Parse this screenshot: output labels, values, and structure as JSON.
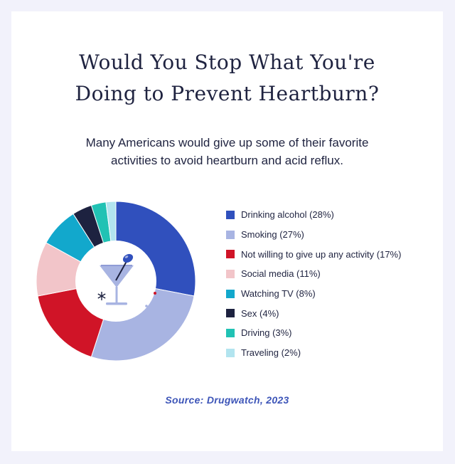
{
  "title": "Would You Stop What You're\nDoing to Prevent Heartburn?",
  "subtitle": "Many Americans would give up some of their favorite\nactivities to avoid heartburn and acid reflux.",
  "source": "Source: Drugwatch, 2023",
  "chart_data": {
    "type": "pie",
    "donut": true,
    "legend_position": "right",
    "center_icon": "martini-glass-icon",
    "series": [
      {
        "label": "Drinking alcohol (28%)",
        "value": 28,
        "color": "#3050bd"
      },
      {
        "label": "Smoking (27%)",
        "value": 27,
        "color": "#a8b4e2"
      },
      {
        "label": "Not willing to give up any activity (17%)",
        "value": 17,
        "color": "#d01427"
      },
      {
        "label": "Social media (11%)",
        "value": 11,
        "color": "#f2c5c9"
      },
      {
        "label": "Watching TV (8%)",
        "value": 8,
        "color": "#12a8cc"
      },
      {
        "label": "Sex (4%)",
        "value": 4,
        "color": "#1d2240"
      },
      {
        "label": "Driving (3%)",
        "value": 3,
        "color": "#21c2b4"
      },
      {
        "label": "Traveling (2%)",
        "value": 2,
        "color": "#b2e4ef"
      }
    ]
  }
}
